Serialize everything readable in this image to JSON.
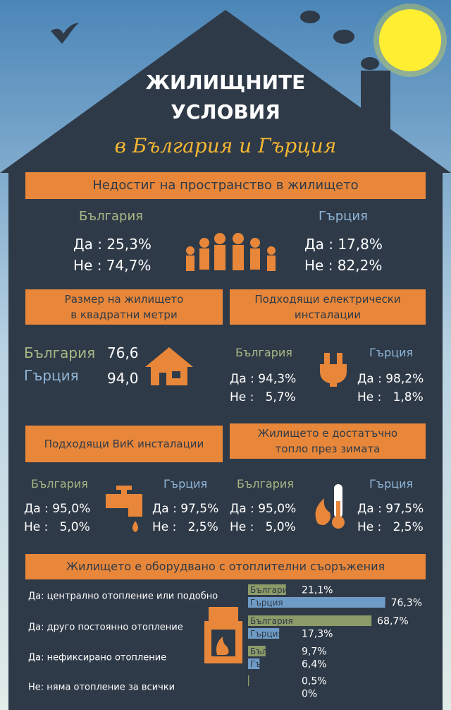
{
  "header": {
    "title_line1": "ЖИЛИЩНИТЕ",
    "title_line2": "УСЛОВИЯ",
    "subtitle": "в България и Гърция"
  },
  "sections": [
    {
      "heading": [
        "Недостиг на пространство в жилището"
      ],
      "bulgaria": {
        "name": "България",
        "lines": [
          "Да : 25,3%",
          "Не : 74,7%"
        ]
      },
      "greece": {
        "name": "Гърция",
        "lines": [
          "Да : 17,8%",
          "Не : 82,2%"
        ]
      }
    },
    {
      "heading": [
        "Размер на жилището",
        "в квадратни метри"
      ],
      "bulgaria": {
        "name": "България",
        "lines": [
          "76,6"
        ]
      },
      "greece": {
        "name": "Гърция",
        "lines": [
          "94,0"
        ]
      }
    },
    {
      "heading": [
        "Подходящи електрически",
        "инсталации"
      ],
      "bulgaria": {
        "name": "България",
        "lines": [
          "Да : 94,3%",
          "Не :   5,7%"
        ]
      },
      "greece": {
        "name": "Гърция",
        "lines": [
          "Да : 98,2%",
          "Не :   1,8%"
        ]
      }
    },
    {
      "heading": [
        "Подходящи ВиК инсталации"
      ],
      "bulgaria": {
        "name": "България",
        "lines": [
          "Да : 95,0%",
          "Не :   5,0%"
        ]
      },
      "greece": {
        "name": "Гърция",
        "lines": [
          "Да : 97,5%",
          "Не :   2,5%"
        ]
      }
    },
    {
      "heading": [
        "Жилището е достатъчно",
        "топло през зимата"
      ],
      "bulgaria": {
        "name": "България",
        "lines": [
          "Да : 95,0%",
          "Не :   5,0%"
        ]
      },
      "greece": {
        "name": "Гърция",
        "lines": [
          "Да : 97,5%",
          "Не :   2,5%"
        ]
      }
    }
  ],
  "chart_data": {
    "type": "bar",
    "orientation": "horizontal",
    "title": "Жилището е оборудвано с отоплителни съоръжения",
    "categories": [
      "Да: централно отопление или подобно",
      "Да: друго постоянно отопление",
      "Да: нефиксирано отопление",
      "Не: няма отопление за всички"
    ],
    "series": [
      {
        "name": "България",
        "color": "#8c9b68",
        "values": [
          21.1,
          68.7,
          9.7,
          0.5
        ],
        "value_labels": [
          "21,1%",
          "68,7%",
          "9,7%",
          "0,5%"
        ]
      },
      {
        "name": "Гърция",
        "color": "#6f9cc6",
        "values": [
          76.3,
          17.3,
          6.4,
          0
        ],
        "value_labels": [
          "76,3%",
          "17,3%",
          "6,4%",
          "0%"
        ]
      }
    ]
  }
}
